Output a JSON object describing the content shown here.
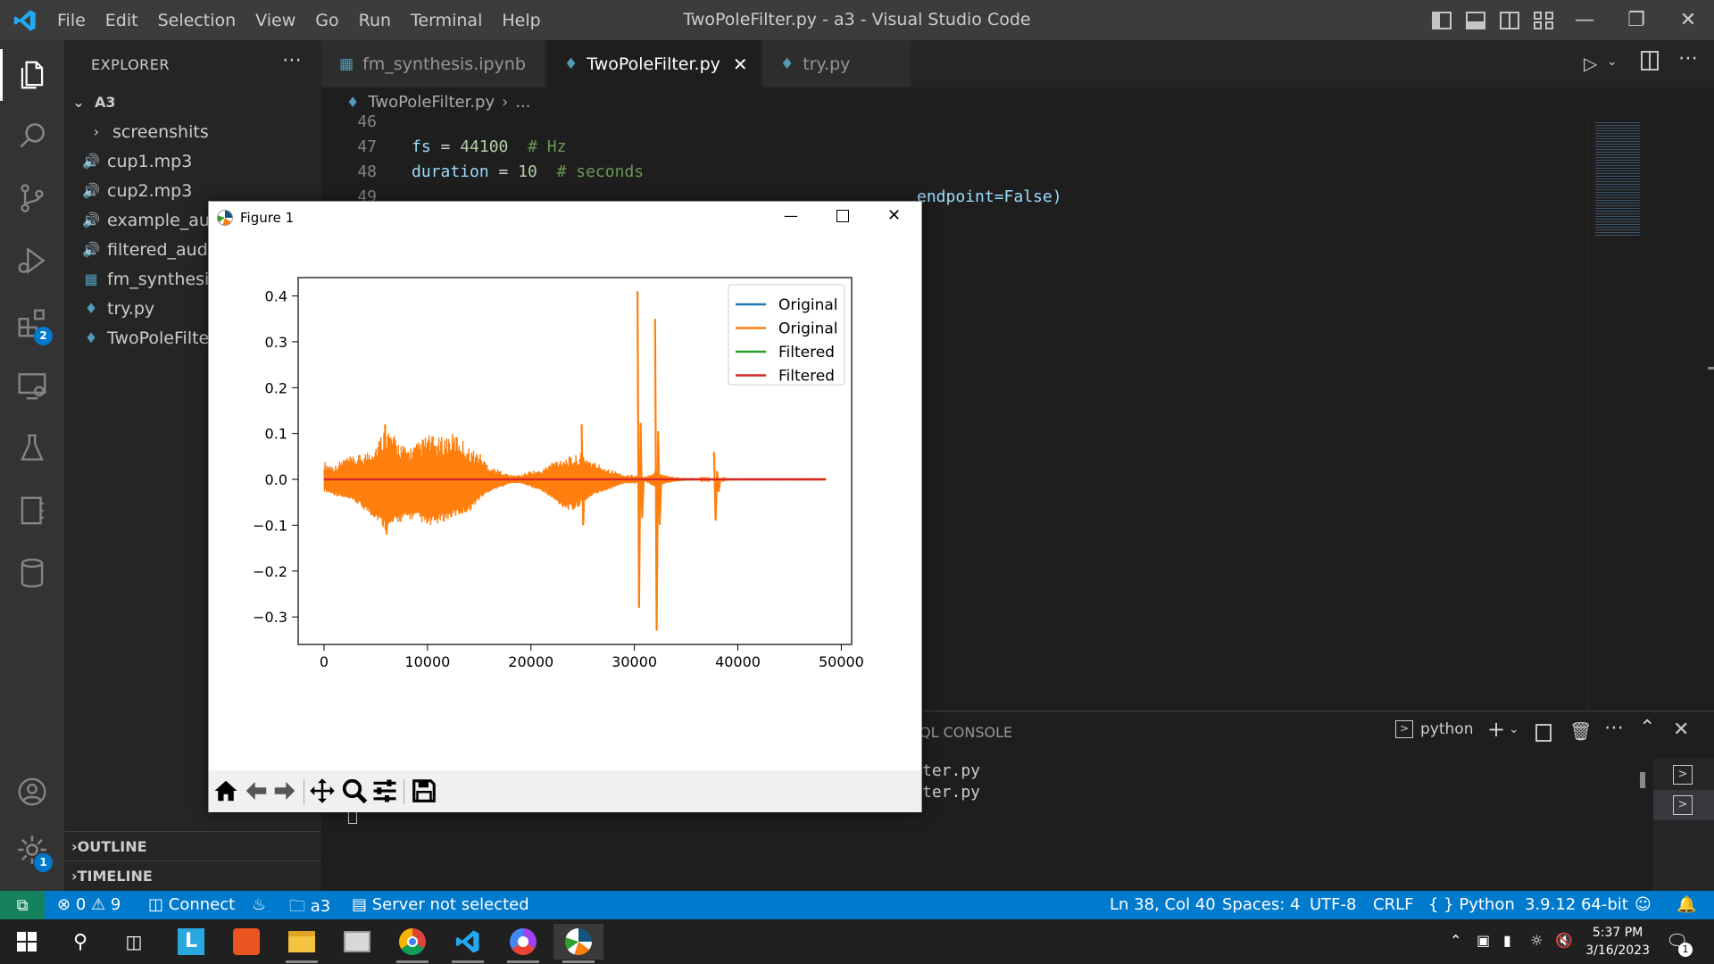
{
  "titlebar": {
    "menu": [
      "File",
      "Edit",
      "Selection",
      "View",
      "Go",
      "Run",
      "Terminal",
      "Help"
    ],
    "window_title": "TwoPoleFilter.py - a3 - Visual Studio Code"
  },
  "activitybar": {
    "extensions_badge": "2",
    "settings_badge": "1"
  },
  "sidebar": {
    "header": "EXPLORER",
    "folder": "A3",
    "items": [
      {
        "label": "screenshits",
        "icon": "chevron-right-icon"
      },
      {
        "label": "cup1.mp3",
        "icon": "audio-icon"
      },
      {
        "label": "cup2.mp3",
        "icon": "audio-icon"
      },
      {
        "label": "example_auc",
        "icon": "audio-icon"
      },
      {
        "label": "filtered_audi",
        "icon": "audio-icon"
      },
      {
        "label": "fm_synthesis",
        "icon": "notebook-icon"
      },
      {
        "label": "try.py",
        "icon": "python-icon"
      },
      {
        "label": "TwoPoleFilter",
        "icon": "python-icon"
      }
    ],
    "outline": "OUTLINE",
    "timeline": "TIMELINE"
  },
  "tabs": [
    {
      "label": "fm_synthesis.ipynb",
      "active": false
    },
    {
      "label": "TwoPoleFilter.py",
      "active": true
    },
    {
      "label": "try.py",
      "active": false
    }
  ],
  "breadcrumb": {
    "file": "TwoPoleFilter.py",
    "rest": "..."
  },
  "code": {
    "lines": [
      {
        "n": "46"
      },
      {
        "n": "47"
      },
      {
        "n": "48"
      },
      {
        "n": "49"
      }
    ],
    "line47": {
      "var": "fs",
      "eq": " = ",
      "num": "44100",
      "cmt": "  # Hz"
    },
    "line48": {
      "var": "duration",
      "eq": " = ",
      "num": "10",
      "cmt": "  # seconds"
    },
    "line49": {
      "tail": "endpoint=False)"
    }
  },
  "panel": {
    "tab_fragment": "QL CONSOLE",
    "shell": "python",
    "term_lines": [
      "ter.py",
      "ter.py"
    ]
  },
  "statusbar": {
    "errors": "0",
    "warnings": "9",
    "connect": "Connect",
    "folder": "a3",
    "server": "Server not selected",
    "position": "Ln 38, Col 40",
    "spaces": "Spaces: 4",
    "encoding": "UTF-8",
    "eol": "CRLF",
    "language": "Python",
    "interpreter": "3.9.12 64-bit"
  },
  "taskbar": {
    "time": "5:37 PM",
    "date": "3/16/2023",
    "notification_count": "1"
  },
  "figure": {
    "title": "Figure 1",
    "toolbar": [
      "home-icon",
      "back-arrow-icon",
      "forward-arrow-icon",
      "pan-icon",
      "zoom-icon",
      "configure-icon",
      "save-icon"
    ]
  },
  "chart_data": {
    "type": "line",
    "title": "",
    "xlabel": "",
    "ylabel": "",
    "xlim": [
      -2500,
      51000
    ],
    "ylim": [
      -0.36,
      0.44
    ],
    "xticks": [
      0,
      10000,
      20000,
      30000,
      40000,
      50000
    ],
    "xtick_labels": [
      "0",
      "10000",
      "20000",
      "30000",
      "40000",
      "50000"
    ],
    "yticks": [
      0.4,
      0.3,
      0.2,
      0.1,
      0.0,
      -0.1,
      -0.2,
      -0.3
    ],
    "ytick_labels": [
      "0.4",
      "0.3",
      "0.2",
      "0.1",
      "0.0",
      "−0.1",
      "−0.2",
      "−0.3"
    ],
    "legend_position": "top-right",
    "grid": false,
    "series": [
      {
        "name": "Original",
        "color": "#1f77b4"
      },
      {
        "name": "Original",
        "color": "#ff7f0e"
      },
      {
        "name": "Filtered",
        "color": "#2ca02c"
      },
      {
        "name": "Filtered",
        "color": "#d62728"
      }
    ],
    "envelope": {
      "x": [
        0,
        1000,
        2000,
        3000,
        4000,
        5000,
        6000,
        7000,
        8000,
        9000,
        10000,
        11000,
        12000,
        13000,
        14000,
        15000,
        16000,
        17000,
        18000,
        19000,
        20000,
        21000,
        22000,
        23000,
        24000,
        25000,
        26000,
        27000,
        28000,
        29000,
        30000,
        31000,
        32000,
        33000,
        34000,
        35000,
        36000,
        37000,
        38000,
        39000,
        40000,
        41000,
        42000,
        43000,
        44000,
        45000,
        46000,
        47000,
        48000,
        48500
      ],
      "upper": [
        0.04,
        0.03,
        0.05,
        0.05,
        0.06,
        0.08,
        0.12,
        0.09,
        0.07,
        0.08,
        0.1,
        0.09,
        0.1,
        0.1,
        0.07,
        0.06,
        0.03,
        0.02,
        0.01,
        0.01,
        0.02,
        0.02,
        0.04,
        0.05,
        0.05,
        0.06,
        0.04,
        0.03,
        0.02,
        0.01,
        0.01,
        0.005,
        0.02,
        0.01,
        0.005,
        0.003,
        0.003,
        0.002,
        0.004,
        0.001,
        0.001,
        0.001,
        0.001,
        0.001,
        0.001,
        0.001,
        0.001,
        0.001,
        0.001,
        0.001
      ],
      "lower": [
        -0.03,
        -0.04,
        -0.05,
        -0.06,
        -0.08,
        -0.1,
        -0.13,
        -0.11,
        -0.1,
        -0.1,
        -0.12,
        -0.11,
        -0.1,
        -0.09,
        -0.08,
        -0.05,
        -0.03,
        -0.02,
        -0.01,
        -0.01,
        -0.02,
        -0.03,
        -0.05,
        -0.07,
        -0.08,
        -0.06,
        -0.04,
        -0.03,
        -0.02,
        -0.01,
        -0.01,
        -0.005,
        -0.02,
        -0.01,
        -0.005,
        -0.003,
        -0.003,
        -0.002,
        -0.004,
        -0.001,
        -0.001,
        -0.001,
        -0.001,
        -0.001,
        -0.001,
        -0.001,
        -0.001,
        -0.001,
        -0.001,
        -0.001
      ]
    },
    "spikes": [
      {
        "x": 5900,
        "top": 0.12,
        "bottom": -0.12
      },
      {
        "x": 24900,
        "top": 0.12,
        "bottom": -0.1
      },
      {
        "x": 30300,
        "top": 0.41,
        "bottom": -0.28
      },
      {
        "x": 32000,
        "top": 0.35,
        "bottom": -0.33
      },
      {
        "x": 37700,
        "top": 0.06,
        "bottom": -0.09
      }
    ]
  }
}
